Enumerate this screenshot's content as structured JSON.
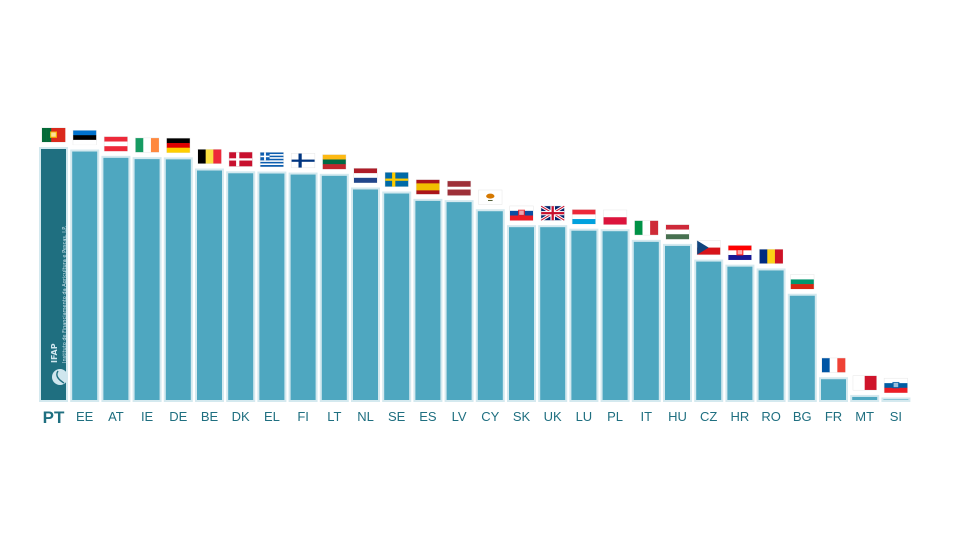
{
  "chart_data": {
    "type": "bar",
    "title": "",
    "xlabel": "",
    "ylabel": "",
    "ylim": [
      0,
      100
    ],
    "highlight": "PT",
    "categories": [
      "PT",
      "EE",
      "AT",
      "IE",
      "DE",
      "BE",
      "DK",
      "EL",
      "FI",
      "LT",
      "NL",
      "SE",
      "ES",
      "LV",
      "CY",
      "SK",
      "UK",
      "LU",
      "PL",
      "IT",
      "HU",
      "CZ",
      "HR",
      "RO",
      "BG",
      "FR",
      "MT",
      "SI"
    ],
    "values": [
      100,
      99,
      96.5,
      96,
      95.9,
      91.5,
      90.4,
      90.3,
      89.9,
      89.4,
      84,
      82.4,
      79.5,
      79,
      75.4,
      69.1,
      69.1,
      67.7,
      67.5,
      63.3,
      61.7,
      55.5,
      53.5,
      52,
      42,
      9,
      2,
      1
    ]
  },
  "logo": {
    "name": "IFAP",
    "subtitle": "Instituto de Financiamento da Agricultura e Pescas, I.P."
  }
}
